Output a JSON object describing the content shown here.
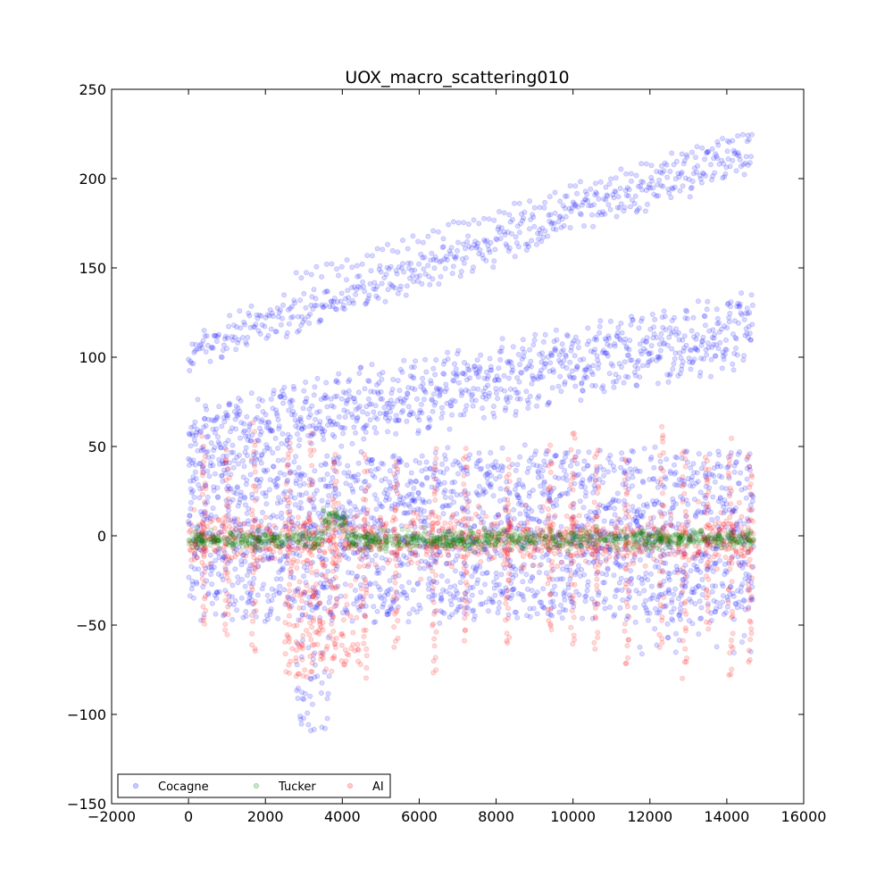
{
  "chart_data": {
    "type": "scatter",
    "title": "UOX_macro_scattering010",
    "xlabel": "",
    "ylabel": "",
    "xlim": [
      -2000,
      16000
    ],
    "ylim": [
      -150,
      250
    ],
    "xticks": [
      -2000,
      0,
      2000,
      4000,
      6000,
      8000,
      10000,
      12000,
      14000,
      16000
    ],
    "yticks": [
      -150,
      -100,
      -50,
      0,
      50,
      100,
      150,
      200,
      250
    ],
    "xtick_labels": [
      "−2000",
      "0",
      "2000",
      "4000",
      "6000",
      "8000",
      "10000",
      "12000",
      "14000",
      "16000"
    ],
    "ytick_labels": [
      "−150",
      "−100",
      "−50",
      "0",
      "50",
      "100",
      "150",
      "200",
      "250"
    ],
    "grid": false,
    "legend_position": "lower-left",
    "point_count_per_series": 14700,
    "series": [
      {
        "name": "Cocagne",
        "color": "#0000ff",
        "alpha": 0.15,
        "x_range": [
          0,
          14700
        ],
        "y_range": [
          -110,
          223
        ],
        "sample_points": [
          [
            0,
            117
          ],
          [
            500,
            125
          ],
          [
            1500,
            127
          ],
          [
            2800,
            126
          ],
          [
            3100,
            -110
          ],
          [
            3300,
            -110
          ],
          [
            4000,
            95
          ],
          [
            5500,
            140
          ],
          [
            8500,
            178
          ],
          [
            10000,
            182
          ],
          [
            12000,
            182
          ],
          [
            13700,
            212
          ],
          [
            14700,
            223
          ],
          [
            14700,
            165
          ],
          [
            14600,
            150
          ],
          [
            12400,
            -68
          ],
          [
            13000,
            -65
          ],
          [
            13700,
            -60
          ],
          [
            14400,
            -45
          ],
          [
            11500,
            -55
          ],
          [
            3500,
            -80
          ],
          [
            3000,
            -95
          ],
          [
            9000,
            120
          ],
          [
            7000,
            95
          ],
          [
            6000,
            65
          ],
          [
            14500,
            30
          ],
          [
            13500,
            20
          ],
          [
            10000,
            40
          ],
          [
            2000,
            50
          ],
          [
            500,
            -55
          ]
        ]
      },
      {
        "name": "Tucker",
        "color": "#008000",
        "alpha": 0.15,
        "x_range": [
          0,
          14700
        ],
        "y_range": [
          -18,
          18
        ],
        "sample_points": [
          [
            0,
            0
          ],
          [
            1000,
            -3
          ],
          [
            2000,
            -5
          ],
          [
            3000,
            -3
          ],
          [
            3600,
            15
          ],
          [
            3900,
            8
          ],
          [
            5000,
            -2
          ],
          [
            7000,
            -6
          ],
          [
            9000,
            -5
          ],
          [
            11000,
            -3
          ],
          [
            12500,
            0
          ],
          [
            14000,
            3
          ],
          [
            14700,
            0
          ]
        ]
      },
      {
        "name": "AI",
        "color": "#ff0000",
        "alpha": 0.15,
        "x_range": [
          0,
          14700
        ],
        "y_range": [
          -86,
          65
        ],
        "sample_points": [
          [
            400,
            62
          ],
          [
            1000,
            64
          ],
          [
            1700,
            55
          ],
          [
            2600,
            38
          ],
          [
            3800,
            55
          ],
          [
            4600,
            58
          ],
          [
            6400,
            50
          ],
          [
            8300,
            50
          ],
          [
            9400,
            52
          ],
          [
            10600,
            52
          ],
          [
            11400,
            48
          ],
          [
            12300,
            45
          ],
          [
            12900,
            45
          ],
          [
            13800,
            30
          ],
          [
            14500,
            25
          ],
          [
            2700,
            -85
          ],
          [
            3400,
            -80
          ],
          [
            4100,
            -75
          ],
          [
            6800,
            -60
          ],
          [
            7600,
            -60
          ],
          [
            8400,
            -55
          ],
          [
            9500,
            -55
          ],
          [
            10500,
            -52
          ],
          [
            12000,
            -35
          ],
          [
            14200,
            -25
          ],
          [
            600,
            -70
          ],
          [
            1300,
            -70
          ],
          [
            2000,
            -75
          ]
        ]
      }
    ]
  }
}
